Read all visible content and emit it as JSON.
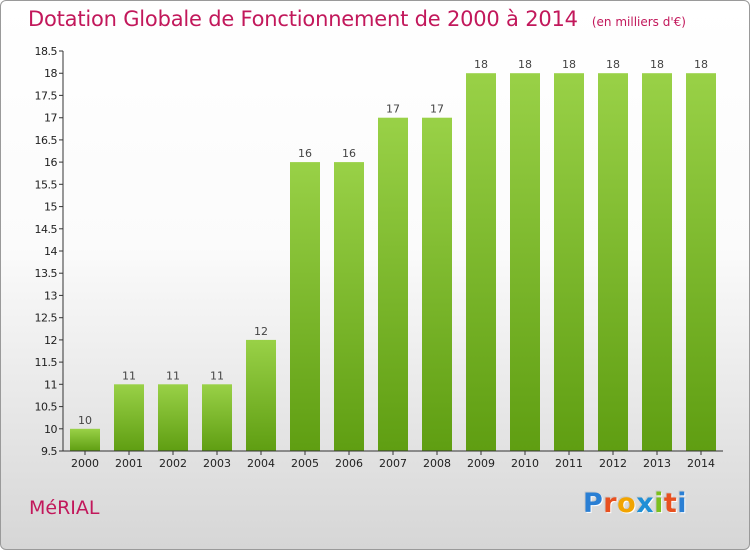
{
  "title": "Dotation Globale de Fonctionnement de 2000 à 2014",
  "unit": "(en milliers d'€)",
  "commune": "MéRIAL",
  "logo": {
    "letters": [
      "P",
      "r",
      "o",
      "x",
      "i",
      "t",
      "i"
    ],
    "colors": [
      "#2a7fd4",
      "#e8501f",
      "#f2a400",
      "#1f8fd6",
      "#7bbf1f",
      "#e8501f",
      "#2a7fd4"
    ]
  },
  "colors": {
    "accent": "#c2185b",
    "bar_light": "#99d147",
    "bar_dark": "#5f9e12",
    "axis": "#333333"
  },
  "chart_data": {
    "type": "bar",
    "categories": [
      "2000",
      "2001",
      "2002",
      "2003",
      "2004",
      "2005",
      "2006",
      "2007",
      "2008",
      "2009",
      "2010",
      "2011",
      "2012",
      "2013",
      "2014"
    ],
    "values": [
      10,
      11,
      11,
      11,
      12,
      16,
      16,
      17,
      17,
      18,
      18,
      18,
      18,
      18,
      18
    ],
    "data_labels": [
      "10",
      "11",
      "11",
      "11",
      "12",
      "16",
      "16",
      "17",
      "17",
      "18",
      "18",
      "18",
      "18",
      "18",
      "18"
    ],
    "title": "Dotation Globale de Fonctionnement de 2000 à 2014",
    "xlabel": "",
    "ylabel": "",
    "ylim": [
      9.5,
      18.5
    ],
    "yticks": [
      "9.5",
      "10",
      "10.5",
      "11",
      "11.5",
      "12",
      "12.5",
      "13",
      "13.5",
      "14",
      "14.5",
      "15",
      "15.5",
      "16",
      "16.5",
      "17",
      "17.5",
      "18",
      "18.5"
    ],
    "grid": false,
    "legend": "none"
  }
}
